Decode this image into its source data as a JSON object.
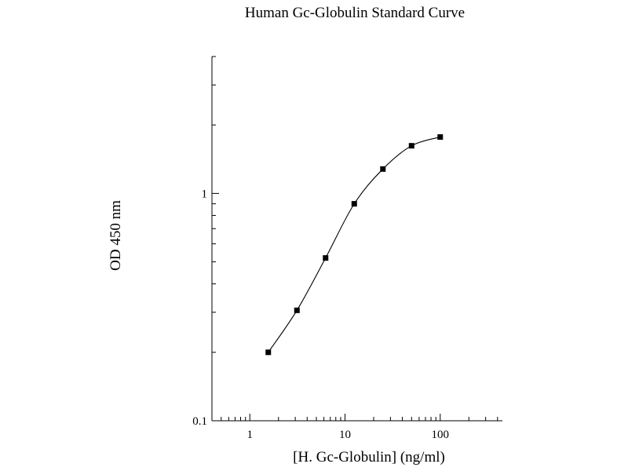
{
  "chart_data": {
    "type": "scatter",
    "title": "Human Gc-Globulin Standard Curve",
    "xlabel": "[H. Gc-Globulin] (ng/ml)",
    "ylabel": "OD 450 nm",
    "xscale": "log",
    "yscale": "log",
    "xlim": [
      0.4,
      450
    ],
    "ylim": [
      0.1,
      4
    ],
    "x_tick_labels": [
      "1",
      "10",
      "100"
    ],
    "y_tick_labels": [
      "0.1",
      "1"
    ],
    "series": [
      {
        "x": [
          1.5625,
          3.125,
          6.25,
          12.5,
          25,
          50,
          100
        ],
        "y": [
          0.2,
          0.306,
          0.52,
          0.9,
          1.28,
          1.62,
          1.77
        ]
      }
    ],
    "fit_line": true,
    "grid": false,
    "legend": "none"
  }
}
